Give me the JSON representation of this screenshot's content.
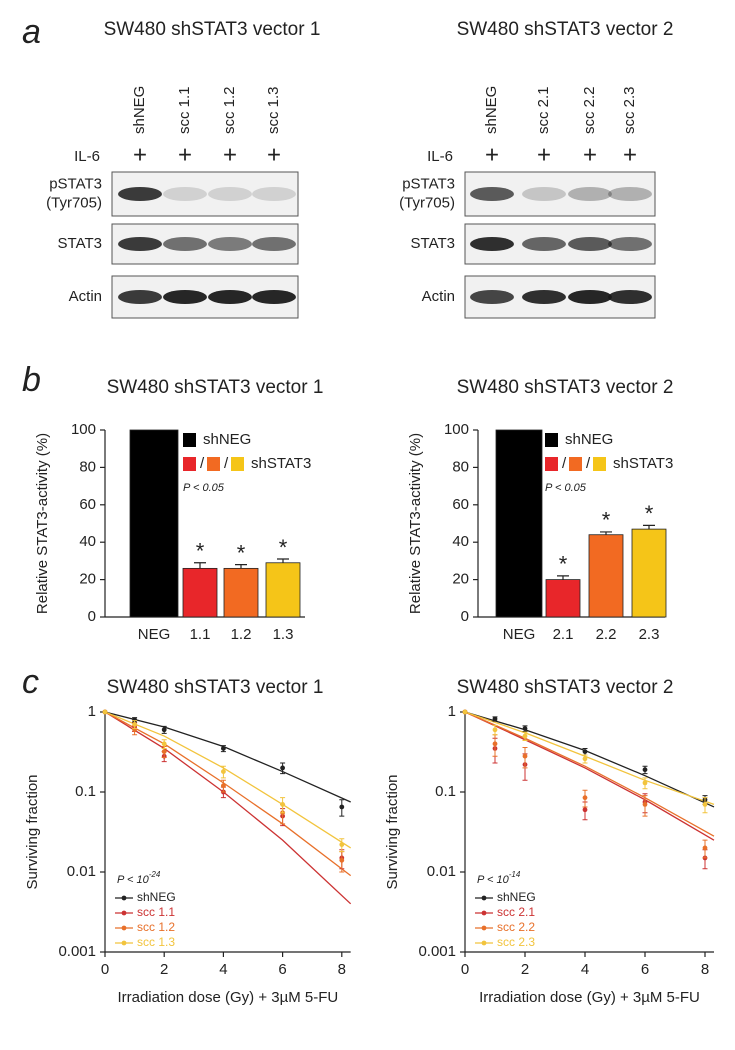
{
  "panel_labels": [
    "a",
    "b",
    "c"
  ],
  "blots": [
    {
      "title": "SW480 shSTAT3 vector 1",
      "lanes": [
        "shNEG",
        "scc 1.1",
        "scc 1.2",
        "scc 1.3"
      ],
      "treatment": "IL-6",
      "treatment_marks": [
        "+",
        "+",
        "+",
        "+"
      ],
      "rows": [
        {
          "label": [
            "pSTAT3",
            "(Tyr705)"
          ]
        },
        {
          "label": [
            "STAT3"
          ]
        },
        {
          "label": [
            "Actin"
          ]
        }
      ]
    },
    {
      "title": "SW480 shSTAT3 vector 2",
      "lanes": [
        "shNEG",
        "scc 2.1",
        "scc 2.2",
        "scc 2.3"
      ],
      "treatment": "IL-6",
      "treatment_marks": [
        "+",
        "+",
        "+",
        "+"
      ],
      "rows": [
        {
          "label": [
            "pSTAT3",
            "(Tyr705)"
          ]
        },
        {
          "label": [
            "STAT3"
          ]
        },
        {
          "label": [
            "Actin"
          ]
        }
      ]
    }
  ],
  "chart_data": [
    {
      "type": "bar",
      "title": "SW480 shSTAT3 vector 1",
      "y_label": "Relative STAT3-activity (%)",
      "categories": [
        "NEG",
        "1.1",
        "1.2",
        "1.3"
      ],
      "values": [
        100,
        26,
        26,
        29
      ],
      "errors": [
        null,
        3,
        2,
        2
      ],
      "colors": [
        "#000000",
        "#e8262a",
        "#f26a22",
        "#f5c518"
      ],
      "significance": [
        null,
        "*",
        "*",
        "*"
      ],
      "ylim": [
        0,
        100
      ],
      "yticks": [
        0,
        20,
        40,
        60,
        80,
        100
      ],
      "legend": [
        {
          "label": "shNEG",
          "colors": [
            "#000000"
          ]
        },
        {
          "label": "shSTAT3",
          "colors": [
            "#e8262a",
            "#f26a22",
            "#f5c518"
          ],
          "separator": "/"
        }
      ],
      "p_value": "P < 0.05"
    },
    {
      "type": "bar",
      "title": "SW480 shSTAT3 vector 2",
      "y_label": "Relative STAT3-activity (%)",
      "categories": [
        "NEG",
        "2.1",
        "2.2",
        "2.3"
      ],
      "values": [
        100,
        20,
        44,
        47
      ],
      "errors": [
        null,
        2,
        1.5,
        2
      ],
      "colors": [
        "#000000",
        "#e8262a",
        "#f26a22",
        "#f5c518"
      ],
      "significance": [
        null,
        "*",
        "*",
        "*"
      ],
      "ylim": [
        0,
        100
      ],
      "yticks": [
        0,
        20,
        40,
        60,
        80,
        100
      ],
      "legend": [
        {
          "label": "shNEG",
          "colors": [
            "#000000"
          ]
        },
        {
          "label": "shSTAT3",
          "colors": [
            "#e8262a",
            "#f26a22",
            "#f5c518"
          ],
          "separator": "/"
        }
      ],
      "p_value": "P < 0.05"
    },
    {
      "type": "line",
      "title": "SW480 shSTAT3 vector 1",
      "x_label": "Irradiation dose (Gy) + 3µM 5-FU",
      "y_label": "Surviving fraction",
      "log_y": true,
      "x": [
        0,
        1,
        2,
        4,
        6,
        8
      ],
      "xlim": [
        0,
        8.3
      ],
      "xticks": [
        0,
        2,
        4,
        6,
        8
      ],
      "ylim": [
        0.001,
        1
      ],
      "yticks": [
        0.001,
        0.01,
        0.1,
        1
      ],
      "p_value": {
        "prefix": "P < 10",
        "exponent": "-24"
      },
      "series": [
        {
          "name": "shNEG",
          "color": "#222222",
          "values": [
            1,
            0.8,
            0.6,
            0.35,
            0.2,
            0.065
          ],
          "errors": [
            0,
            0.05,
            0.06,
            0.03,
            0.03,
            0.015
          ],
          "fit_x": [
            0,
            2,
            4,
            6,
            8.3
          ],
          "fit_values": [
            1,
            0.65,
            0.37,
            0.18,
            0.075
          ]
        },
        {
          "name": "scc 1.1",
          "color": "#cc3333",
          "values": [
            1,
            0.65,
            0.28,
            0.1,
            0.05,
            0.015
          ],
          "errors": [
            0,
            0.08,
            0.04,
            0.015,
            0.012,
            0.004
          ],
          "fit_x": [
            0,
            2,
            4,
            6,
            8.3
          ],
          "fit_values": [
            1,
            0.35,
            0.1,
            0.025,
            0.004
          ]
        },
        {
          "name": "scc 1.2",
          "color": "#e8702a",
          "values": [
            1,
            0.6,
            0.32,
            0.12,
            0.055,
            0.014
          ],
          "errors": [
            0,
            0.08,
            0.05,
            0.02,
            0.015,
            0.004
          ],
          "fit_x": [
            0,
            2,
            4,
            6,
            8.3
          ],
          "fit_values": [
            1,
            0.4,
            0.13,
            0.04,
            0.009
          ]
        },
        {
          "name": "scc 1.3",
          "color": "#f2c43d",
          "values": [
            1,
            0.7,
            0.4,
            0.18,
            0.07,
            0.022
          ],
          "errors": [
            0,
            0.08,
            0.05,
            0.03,
            0.015,
            0.004
          ],
          "fit_x": [
            0,
            2,
            4,
            6,
            8.3
          ],
          "fit_values": [
            1,
            0.5,
            0.2,
            0.07,
            0.02
          ]
        }
      ]
    },
    {
      "type": "line",
      "title": "SW480 shSTAT3 vector 2",
      "x_label": "Irradiation dose (Gy) + 3µM 5-FU",
      "y_label": "Surviving fraction",
      "log_y": true,
      "x": [
        0,
        1,
        2,
        4,
        6,
        8
      ],
      "xlim": [
        0,
        8.3
      ],
      "xticks": [
        0,
        2,
        4,
        6,
        8
      ],
      "ylim": [
        0.001,
        1
      ],
      "yticks": [
        0.001,
        0.01,
        0.1,
        1
      ],
      "p_value": {
        "prefix": "P < 10",
        "exponent": "-14"
      },
      "series": [
        {
          "name": "shNEG",
          "color": "#222222",
          "values": [
            1,
            0.82,
            0.62,
            0.32,
            0.19,
            0.08
          ],
          "errors": [
            0,
            0.05,
            0.05,
            0.03,
            0.02,
            0.01
          ],
          "fit_x": [
            0,
            2,
            4,
            6,
            8.3
          ],
          "fit_values": [
            1,
            0.6,
            0.33,
            0.16,
            0.065
          ]
        },
        {
          "name": "scc 2.1",
          "color": "#cc3333",
          "values": [
            1,
            0.35,
            0.22,
            0.06,
            0.075,
            0.015
          ],
          "errors": [
            0,
            0.12,
            0.08,
            0.015,
            0.02,
            0.004
          ],
          "fit_x": [
            0,
            2,
            4,
            6,
            8.3
          ],
          "fit_values": [
            1,
            0.45,
            0.2,
            0.08,
            0.025
          ]
        },
        {
          "name": "scc 2.2",
          "color": "#e8702a",
          "values": [
            1,
            0.4,
            0.28,
            0.085,
            0.07,
            0.02
          ],
          "errors": [
            0,
            0.12,
            0.08,
            0.02,
            0.02,
            0.005
          ],
          "fit_x": [
            0,
            2,
            4,
            6,
            8.3
          ],
          "fit_values": [
            1,
            0.47,
            0.21,
            0.085,
            0.028
          ]
        },
        {
          "name": "scc 2.3",
          "color": "#f2c43d",
          "values": [
            1,
            0.6,
            0.5,
            0.26,
            0.13,
            0.07
          ],
          "errors": [
            0,
            0.08,
            0.06,
            0.03,
            0.02,
            0.015
          ],
          "fit_x": [
            0,
            2,
            4,
            6,
            8.3
          ],
          "fit_values": [
            1,
            0.55,
            0.28,
            0.14,
            0.07
          ]
        }
      ]
    }
  ]
}
